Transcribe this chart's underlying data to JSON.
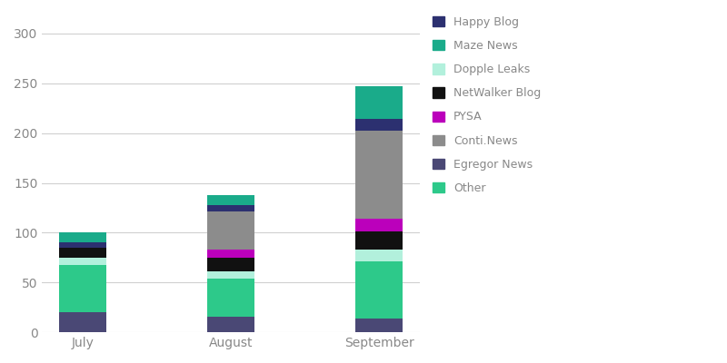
{
  "categories": [
    "July",
    "August",
    "September"
  ],
  "series": [
    {
      "label": "Egregor News",
      "color": "#4a4875",
      "values": [
        20,
        16,
        14
      ]
    },
    {
      "label": "Other",
      "color": "#2dc98a",
      "values": [
        48,
        38,
        57
      ]
    },
    {
      "label": "Dopple Leaks",
      "color": "#b2f0dc",
      "values": [
        7,
        7,
        12
      ]
    },
    {
      "label": "NetWalker Blog",
      "color": "#111111",
      "values": [
        10,
        14,
        18
      ]
    },
    {
      "label": "PYSA",
      "color": "#bb00bb",
      "values": [
        0,
        8,
        13
      ]
    },
    {
      "label": "Conti.News",
      "color": "#8c8c8c",
      "values": [
        0,
        38,
        88
      ]
    },
    {
      "label": "Happy Blog",
      "color": "#2c3070",
      "values": [
        5,
        7,
        12
      ]
    },
    {
      "label": "Maze News",
      "color": "#1aab8a",
      "values": [
        10,
        10,
        33
      ]
    }
  ],
  "ylim": [
    0,
    320
  ],
  "yticks": [
    0,
    50,
    100,
    150,
    200,
    250,
    300
  ],
  "bar_width": 0.32,
  "background_color": "#ffffff",
  "grid_color": "#d0d0d0",
  "legend_order": [
    "Happy Blog",
    "Maze News",
    "Dopple Leaks",
    "NetWalker Blog",
    "PYSA",
    "Conti.News",
    "Egregor News",
    "Other"
  ],
  "tick_color": "#888888",
  "font_size": 10,
  "legend_fontsize": 9
}
